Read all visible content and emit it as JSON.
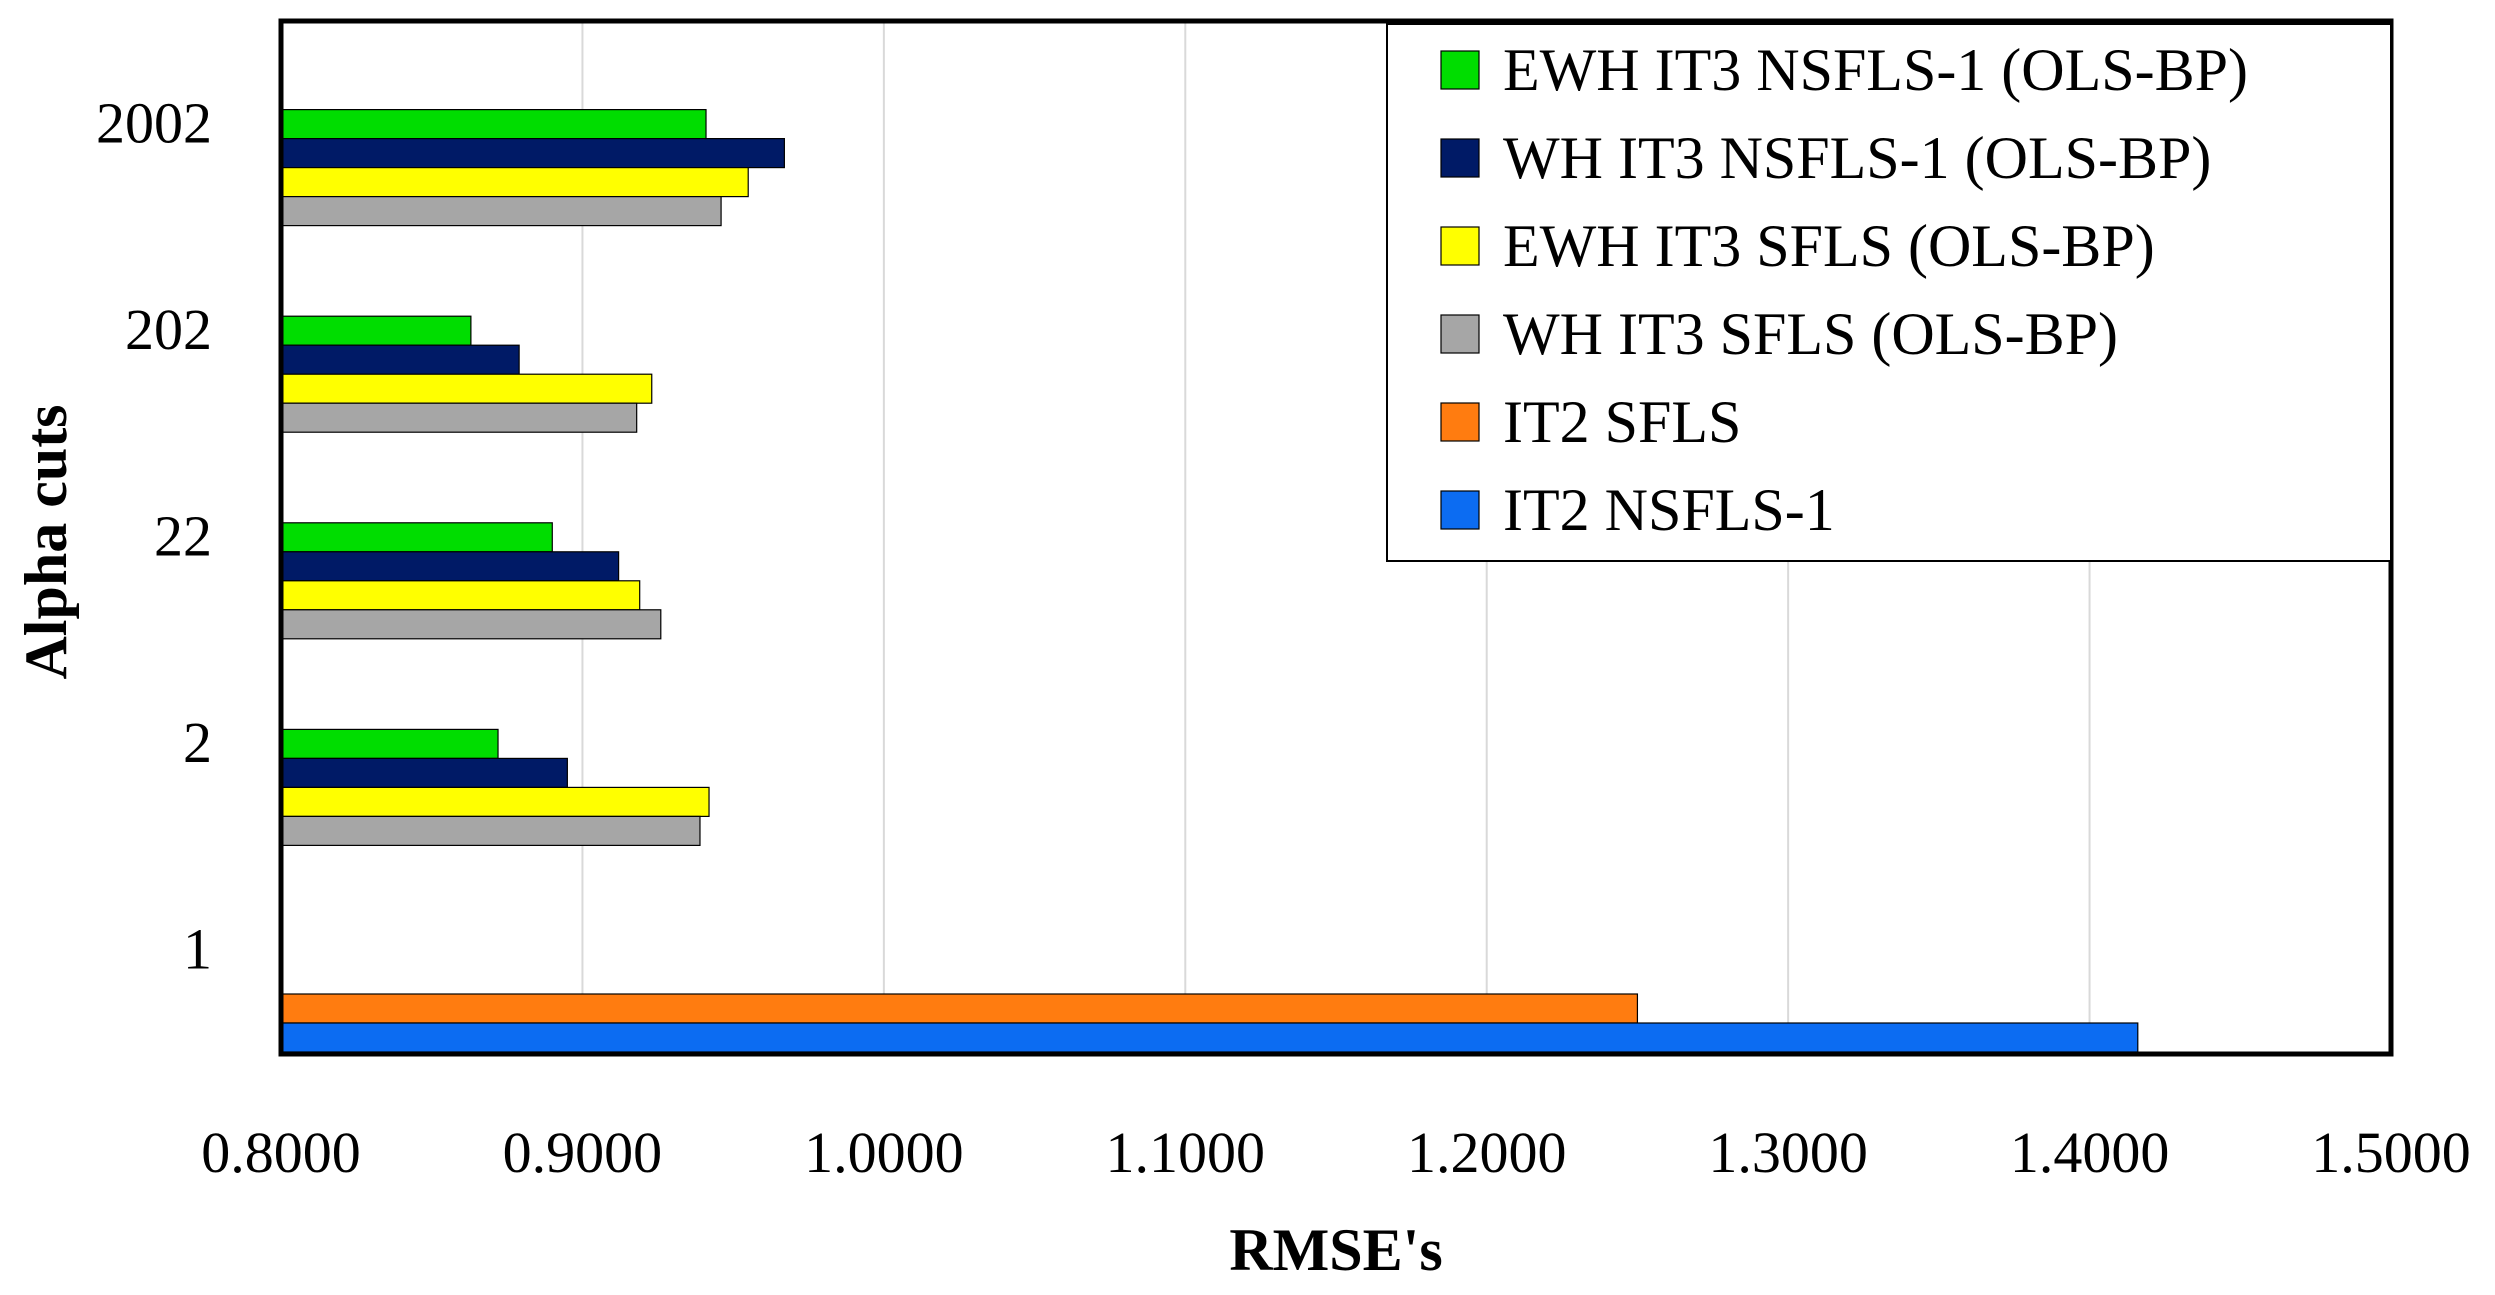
{
  "chart_data": {
    "type": "bar",
    "orientation": "horizontal",
    "title": "",
    "xlabel": "RMSE's",
    "ylabel": "Alpha cuts",
    "xlim": [
      0.8,
      1.5
    ],
    "x_ticks": [
      "0.8000",
      "0.9000",
      "1.0000",
      "1.1000",
      "1.2000",
      "1.3000",
      "1.4000",
      "1.5000"
    ],
    "categories": [
      "1",
      "2",
      "22",
      "202",
      "2002"
    ],
    "series": [
      {
        "name": "EWH IT3 NSFLS-1 (OLS-BP)",
        "color": "#00dd00",
        "values": [
          null,
          0.872,
          0.89,
          0.863,
          0.941
        ]
      },
      {
        "name": "WH IT3 NSFLS-1 (OLS-BP)",
        "color": "#001a66",
        "values": [
          null,
          0.895,
          0.912,
          0.879,
          0.967
        ]
      },
      {
        "name": "EWH IT3 SFLS (OLS-BP)",
        "color": "#ffff00",
        "values": [
          null,
          0.942,
          0.919,
          0.923,
          0.955
        ]
      },
      {
        "name": "WH IT3 SFLS (OLS-BP)",
        "color": "#a6a6a6",
        "values": [
          null,
          0.939,
          0.926,
          0.918,
          0.946
        ]
      },
      {
        "name": "IT2 SFLS",
        "color": "#ff7c10",
        "values": [
          1.25,
          null,
          null,
          null,
          null
        ]
      },
      {
        "name": "IT2 NSFLS-1",
        "color": "#0c6cf2",
        "values": [
          1.416,
          null,
          null,
          null,
          null
        ]
      }
    ],
    "legend_position": "top-right",
    "grid": true
  }
}
